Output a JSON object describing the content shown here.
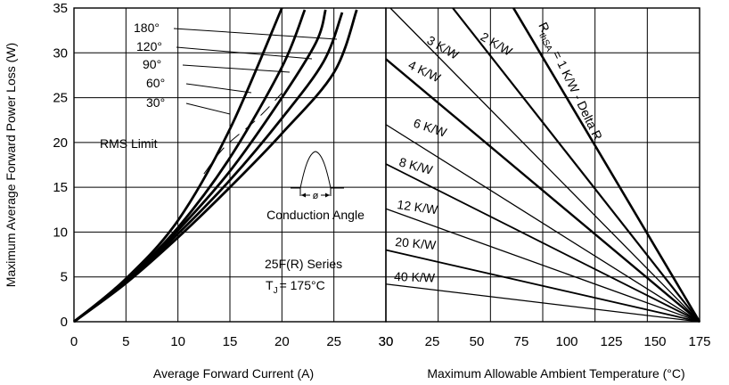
{
  "chart_data": [
    {
      "type": "line",
      "xlabel": "Average Forward Current (A)",
      "ylabel": "Maximum Average Forward Power Loss (W)",
      "xlim": [
        0,
        30
      ],
      "ylim": [
        0,
        35
      ],
      "x_ticks": [
        "0",
        "5",
        "10",
        "15",
        "20",
        "25",
        "30"
      ],
      "y_ticks": [
        "0",
        "5",
        "10",
        "15",
        "20",
        "25",
        "30",
        "35"
      ],
      "grid": true,
      "series": [
        {
          "name": "180°",
          "points": [
            [
              0,
              0
            ],
            [
              5,
              4.8
            ],
            [
              10,
              11.3
            ],
            [
              15,
              21.5
            ],
            [
              20,
              35
            ]
          ]
        },
        {
          "name": "120°",
          "points": [
            [
              0,
              0
            ],
            [
              5,
              4.6
            ],
            [
              10,
              10.5
            ],
            [
              15,
              18.3
            ],
            [
              20,
              28.4
            ],
            [
              22.2,
              34.8
            ]
          ]
        },
        {
          "name": "90°",
          "points": [
            [
              0,
              0
            ],
            [
              5,
              4.5
            ],
            [
              10,
              10.2
            ],
            [
              15,
              16.8
            ],
            [
              20,
              25.0
            ],
            [
              23.3,
              31.2
            ],
            [
              24.2,
              34.8
            ]
          ]
        },
        {
          "name": "60°",
          "points": [
            [
              0,
              0
            ],
            [
              5,
              4.4
            ],
            [
              10,
              9.8
            ],
            [
              15,
              15.8
            ],
            [
              20,
              22.7
            ],
            [
              24,
              29.0
            ],
            [
              25.8,
              34.5
            ]
          ]
        },
        {
          "name": "30°",
          "points": [
            [
              0,
              0
            ],
            [
              5,
              4.3
            ],
            [
              10,
              9.4
            ],
            [
              15,
              15.0
            ],
            [
              20,
              21.0
            ],
            [
              25,
              27.8
            ],
            [
              27.2,
              34.8
            ]
          ]
        }
      ],
      "rms_limit": {
        "label": "RMS Limit",
        "points": [
          [
            12.5,
            16.5
          ],
          [
            14.5,
            19.5
          ],
          [
            17.5,
            22.5
          ],
          [
            20,
            25.5
          ]
        ]
      },
      "conduction_angle": {
        "label": "Conduction Angle",
        "symbol": "ø"
      },
      "series_note": "25F(R) Series",
      "tj_symbol": "T",
      "tj_subscript": "J",
      "tj_value": "= 175°C"
    },
    {
      "type": "line",
      "xlabel": "Maximum Allowable Ambient Temperature (°C)",
      "xlim": [
        25,
        175
      ],
      "ylim": [
        0,
        35
      ],
      "x_ticks": [
        "30",
        "25",
        "50",
        "75",
        "100",
        "125",
        "150",
        "175"
      ],
      "grid": true,
      "rthsa_label_main": "R",
      "rthsa_label_sub": "thSA",
      "rthsa_label_rest": " = 1 K/W - Delta R",
      "lines": [
        {
          "label": "2 K/W",
          "points": [
            [
              57,
              35
            ],
            [
              175,
              0
            ]
          ]
        },
        {
          "label": "3 K/W",
          "points": [
            [
              25,
              35.5
            ],
            [
              175,
              0
            ]
          ]
        },
        {
          "label": "4 K/W",
          "points": [
            [
              25,
              29.3
            ],
            [
              175,
              0
            ]
          ]
        },
        {
          "label": "6 K/W",
          "points": [
            [
              25,
              22.0
            ],
            [
              175,
              0
            ]
          ]
        },
        {
          "label": "8 K/W",
          "points": [
            [
              25,
              17.6
            ],
            [
              175,
              0
            ]
          ]
        },
        {
          "label": "12 K/W",
          "points": [
            [
              25,
              12.6
            ],
            [
              175,
              0
            ]
          ]
        },
        {
          "label": "20 K/W",
          "points": [
            [
              25,
              8.0
            ],
            [
              175,
              0
            ]
          ]
        },
        {
          "label": "40 K/W",
          "points": [
            [
              25,
              4.2
            ],
            [
              175,
              0
            ]
          ]
        },
        {
          "label": "1 K/W",
          "points": [
            [
              86,
              35
            ],
            [
              175,
              0
            ]
          ]
        }
      ]
    }
  ]
}
